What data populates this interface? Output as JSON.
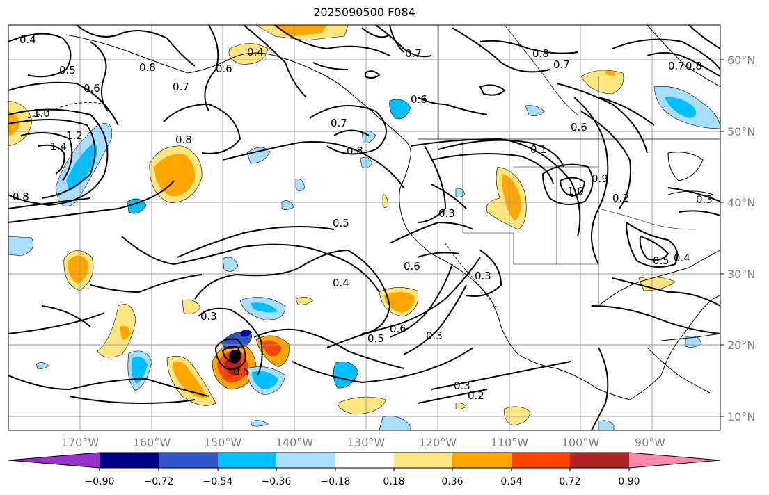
{
  "title": "2025090500 F084",
  "longitude_labels": [
    "170°W",
    "160°W",
    "150°W",
    "140°W",
    "130°W",
    "120°W",
    "110°W",
    "100°W",
    "90°W"
  ],
  "latitude_labels": [
    "60°N",
    "50°N",
    "40°N",
    "30°N",
    "20°N",
    "10°N"
  ],
  "colorbar": {
    "ticks": [
      "−0.90",
      "−0.72",
      "−0.54",
      "−0.36",
      "−0.18",
      "0.18",
      "0.36",
      "0.54",
      "0.72",
      "0.90"
    ],
    "colors": [
      "#9b30d0",
      "#00008b",
      "#3355cc",
      "#00bfff",
      "#aadeff",
      "#ffffff",
      "#ffe680",
      "#ffa500",
      "#ff4500",
      "#b22222",
      "#ff88aa"
    ]
  },
  "contour_labels": [
    "0.4",
    "0.5",
    "0.6",
    "0.8",
    "1.0",
    "1.2",
    "1.4",
    "0.7",
    "0.8",
    "0.5",
    "0.6",
    "0.5",
    "0.3",
    "0.4",
    "0.3",
    "0.5",
    "0.6",
    "0.3",
    "0.3",
    "0.2",
    "0.3",
    "0.7",
    "0.8",
    "0.7",
    "0.8",
    "0.6",
    "0.7",
    "1.0",
    "0.9",
    "0.2",
    "0.3",
    "0.5",
    "0.4",
    "0.8",
    "0.4",
    "0.6",
    "0.8",
    "0.1",
    "0.6",
    "0.7"
  ]
}
